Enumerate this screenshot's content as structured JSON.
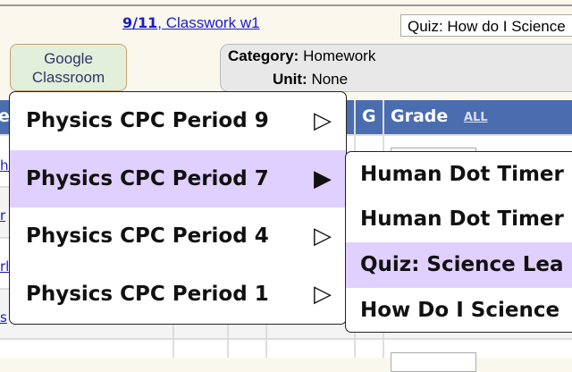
{
  "header": {
    "date_link": "9/11",
    "assignment_link": ", Classwork w1",
    "assignment_select": "Quiz: How do I Science"
  },
  "google_classroom_button": {
    "line1": "Google",
    "line2": "Classroom"
  },
  "info": {
    "category_label": "Category:",
    "category_value": "Homework",
    "unit_label": "Unit:",
    "unit_value": "None"
  },
  "table": {
    "headers": {
      "name_partial": "e",
      "g": "G",
      "grade": "Grade",
      "all_link": "ALL"
    },
    "row_links": [
      "he",
      "r",
      "rl",
      "s"
    ]
  },
  "colors": {
    "header_blue": "#4a6db0",
    "highlight": "#e0d0ff",
    "gc_green": "#e2efda"
  },
  "class_menu": {
    "items": [
      {
        "label": "Physics CPC Period 9",
        "icon": "triangle-right-outline"
      },
      {
        "label": "Physics CPC Period 7",
        "icon": "triangle-right-filled",
        "highlighted": true
      },
      {
        "label": "Physics CPC Period 4",
        "icon": "triangle-right-outline"
      },
      {
        "label": "Physics CPC Period 1",
        "icon": "triangle-right-outline"
      }
    ]
  },
  "assignment_menu": {
    "items": [
      {
        "label": "Human Dot Timer"
      },
      {
        "label": "Human Dot Timer"
      },
      {
        "label": "Quiz: Science Lea",
        "highlighted": true
      },
      {
        "label": "How Do I Science"
      }
    ]
  }
}
